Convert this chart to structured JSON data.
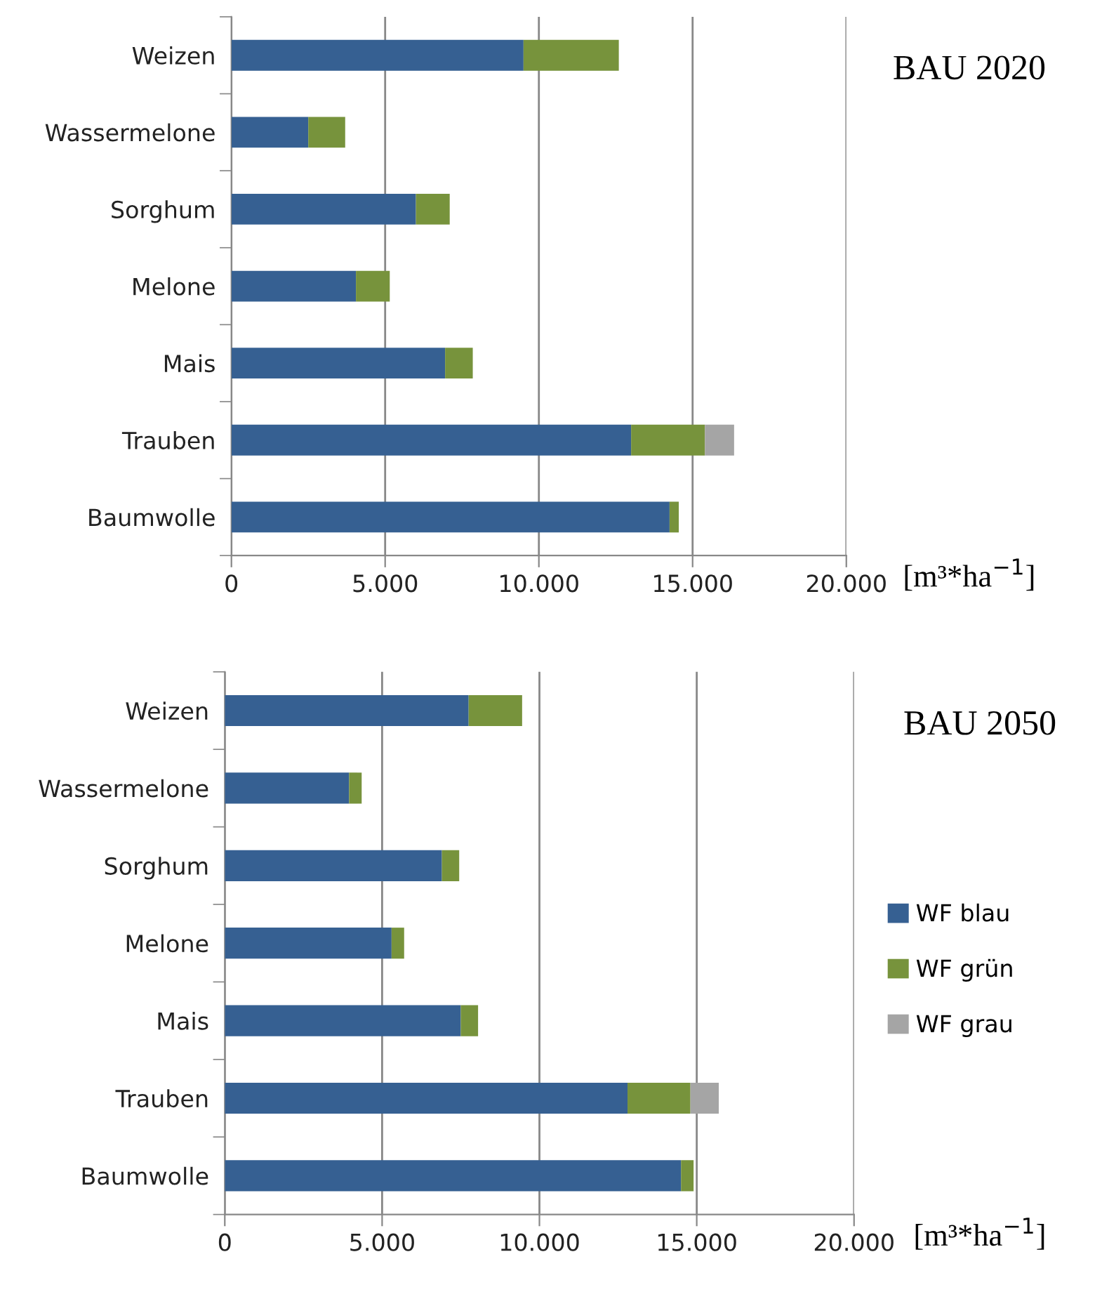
{
  "chart_data": [
    {
      "type": "bar",
      "orientation": "horizontal",
      "stacked": true,
      "title": "BAU 2020",
      "xlabel": "[m³*ha$^{−1}$]",
      "categories": [
        "Weizen",
        "Wassermelone",
        "Sorghum",
        "Melone",
        "Mais",
        "Trauben",
        "Baumwolle"
      ],
      "series": [
        {
          "color": "#366092",
          "values": [
            9500,
            2500,
            6000,
            4050,
            6950,
            13000,
            14250
          ]
        },
        {
          "color": "#77933c",
          "values": [
            3100,
            1200,
            1100,
            1100,
            900,
            2400,
            300
          ]
        },
        {
          "color": "#a5a5a5",
          "values": [
            0,
            0,
            0,
            0,
            0,
            950,
            0
          ]
        }
      ],
      "xlim": [
        0,
        20000
      ],
      "xticks": [
        {
          "value": 0,
          "label": "0"
        },
        {
          "value": 5000,
          "label": "5.000"
        },
        {
          "value": 10000,
          "label": "10.000"
        },
        {
          "value": 15000,
          "label": "15.000"
        },
        {
          "value": 20000,
          "label": "20.000"
        }
      ],
      "grid": "x",
      "legend": false
    },
    {
      "type": "bar",
      "orientation": "horizontal",
      "stacked": true,
      "title": "BAU 2050",
      "xlabel": "[m³*ha$^{−1}$]",
      "categories": [
        "Weizen",
        "Wassermelone",
        "Sorghum",
        "Melone",
        "Mais",
        "Trauben",
        "Baumwolle"
      ],
      "series": [
        {
          "name": "WF blau",
          "color": "#366092",
          "values": [
            7750,
            3950,
            6900,
            5300,
            7500,
            12800,
            14500
          ]
        },
        {
          "name": "WF grün",
          "color": "#77933c",
          "values": [
            1700,
            400,
            550,
            400,
            550,
            2000,
            400
          ]
        },
        {
          "name": "WF grau",
          "color": "#a5a5a5",
          "values": [
            0,
            0,
            0,
            0,
            0,
            900,
            0
          ]
        }
      ],
      "xlim": [
        0,
        20000
      ],
      "xticks": [
        {
          "value": 0,
          "label": "0"
        },
        {
          "value": 5000,
          "label": "5.000"
        },
        {
          "value": 10000,
          "label": "10.000"
        },
        {
          "value": 15000,
          "label": "15.000"
        },
        {
          "value": 20000,
          "label": "20.000"
        }
      ],
      "grid": "x",
      "legend": "right"
    }
  ]
}
